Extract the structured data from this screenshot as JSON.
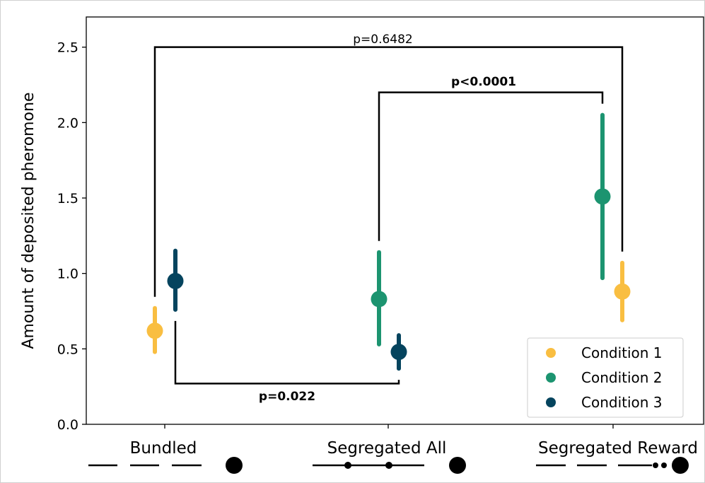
{
  "chart_data": {
    "type": "scatter",
    "title": "",
    "xlabel": "",
    "ylabel": "Amount of deposited pheromone",
    "ylim": [
      0,
      2.7
    ],
    "yticks": [
      "0.0",
      "0.5",
      "1.0",
      "1.5",
      "2.0",
      "2.5"
    ],
    "grid": false,
    "legend_position": "lower-right",
    "categories": [
      "Bundled",
      "Segregated All",
      "Segregated Reward"
    ],
    "series": [
      {
        "name": "Condition 1",
        "color": "#f9be41",
        "points": [
          {
            "category": "Bundled",
            "y": 0.62,
            "low": 0.48,
            "high": 0.77
          },
          {
            "category": "Segregated Reward",
            "y": 0.88,
            "low": 0.69,
            "high": 1.07
          }
        ]
      },
      {
        "name": "Condition 2",
        "color": "#1c9470",
        "points": [
          {
            "category": "Segregated All",
            "y": 0.83,
            "low": 0.53,
            "high": 1.14
          },
          {
            "category": "Segregated Reward",
            "y": 1.51,
            "low": 0.97,
            "high": 2.05
          }
        ]
      },
      {
        "name": "Condition 3",
        "color": "#05445e",
        "points": [
          {
            "category": "Bundled",
            "y": 0.95,
            "low": 0.76,
            "high": 1.15
          },
          {
            "category": "Segregated All",
            "y": 0.48,
            "low": 0.37,
            "high": 0.59
          }
        ]
      }
    ],
    "annotations": [
      {
        "text": "p=0.6482",
        "bold": false,
        "from": "Bundled / Condition 1",
        "to": "Segregated Reward / Condition 1"
      },
      {
        "text": "p<0.0001",
        "bold": true,
        "from": "Segregated All / Condition 2",
        "to": "Segregated Reward / Condition 2"
      },
      {
        "text": "p=0.022",
        "bold": true,
        "from": "Bundled / Condition 3",
        "to": "Segregated All / Condition 3"
      }
    ]
  }
}
